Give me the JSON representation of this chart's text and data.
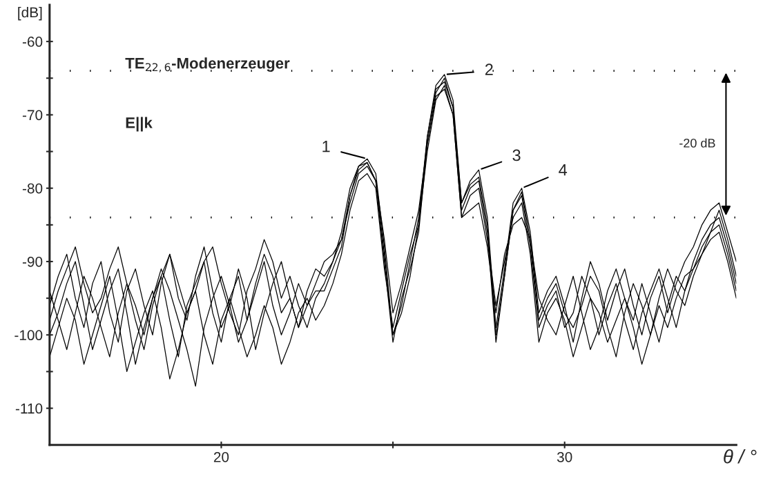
{
  "chart_data": {
    "type": "line",
    "title": "TE$_{22,6}$-Modenerzeuger",
    "subtitle": "E||k",
    "xlabel": "θ / °",
    "ylabel": "[dB]",
    "x": [
      15.0,
      15.25,
      15.5,
      15.75,
      16.0,
      16.25,
      16.5,
      16.75,
      17.0,
      17.25,
      17.5,
      17.75,
      18.0,
      18.25,
      18.5,
      18.75,
      19.0,
      19.25,
      19.5,
      19.75,
      20.0,
      20.25,
      20.5,
      20.75,
      21.0,
      21.25,
      21.5,
      21.75,
      22.0,
      22.25,
      22.5,
      22.75,
      23.0,
      23.25,
      23.5,
      23.75,
      24.0,
      24.25,
      24.5,
      24.75,
      25.0,
      25.25,
      25.5,
      25.75,
      26.0,
      26.25,
      26.5,
      26.75,
      27.0,
      27.25,
      27.5,
      27.75,
      28.0,
      28.25,
      28.5,
      28.75,
      29.0,
      29.25,
      29.5,
      29.75,
      30.0,
      30.25,
      30.5,
      30.75,
      31.0,
      31.25,
      31.5,
      31.75,
      32.0,
      32.25,
      32.5,
      32.75,
      33.0,
      33.25,
      33.5,
      33.75,
      34.0,
      34.25,
      34.5,
      34.75,
      35.0
    ],
    "series": [
      {
        "color": "#000000",
        "values": [
          -96,
          -92,
          -89,
          -95,
          -99,
          -93,
          -90,
          -97,
          -101,
          -94,
          -91,
          -96,
          -100,
          -93,
          -89,
          -95,
          -98,
          -92,
          -88,
          -94,
          -99,
          -96,
          -91,
          -95,
          -102,
          -97,
          -93,
          -90,
          -95,
          -99,
          -94,
          -91,
          -92,
          -90,
          -86,
          -80,
          -77,
          -76,
          -78,
          -88,
          -100,
          -96,
          -90,
          -84,
          -73,
          -66,
          -64.5,
          -68,
          -82,
          -79,
          -77.5,
          -84,
          -99,
          -91,
          -82,
          -80,
          -86,
          -97,
          -94,
          -92,
          -96,
          -101,
          -95,
          -90,
          -93,
          -98,
          -94,
          -91,
          -96,
          -100,
          -95,
          -92,
          -97,
          -93,
          -90,
          -88,
          -85,
          -83,
          -82,
          -86,
          -90
        ]
      },
      {
        "color": "#000000",
        "values": [
          -100,
          -97,
          -93,
          -90,
          -96,
          -102,
          -98,
          -94,
          -91,
          -97,
          -104,
          -99,
          -95,
          -92,
          -98,
          -103,
          -96,
          -93,
          -90,
          -97,
          -101,
          -95,
          -92,
          -98,
          -94,
          -90,
          -96,
          -100,
          -97,
          -93,
          -96,
          -94,
          -94,
          -91,
          -88,
          -81,
          -77.5,
          -76.5,
          -79,
          -90,
          -101,
          -95,
          -91,
          -86,
          -74,
          -67,
          -65,
          -69,
          -83,
          -80,
          -79,
          -86,
          -101,
          -92,
          -83,
          -81,
          -88,
          -99,
          -96,
          -94,
          -99,
          -97,
          -92,
          -95,
          -100,
          -96,
          -93,
          -98,
          -102,
          -97,
          -94,
          -91,
          -95,
          -99,
          -94,
          -90,
          -87,
          -85,
          -84,
          -88,
          -93
        ]
      },
      {
        "color": "#000000",
        "values": [
          -103,
          -99,
          -95,
          -98,
          -104,
          -100,
          -96,
          -92,
          -98,
          -105,
          -101,
          -97,
          -94,
          -99,
          -106,
          -102,
          -97,
          -94,
          -100,
          -104,
          -98,
          -95,
          -99,
          -103,
          -100,
          -96,
          -99,
          -104,
          -101,
          -97,
          -95,
          -98,
          -96,
          -93,
          -89,
          -83,
          -79,
          -78,
          -80,
          -91,
          -99,
          -94,
          -89,
          -85,
          -75,
          -68,
          -66,
          -70,
          -84,
          -81,
          -80,
          -87,
          -96,
          -90,
          -84,
          -82,
          -89,
          -101,
          -97,
          -95,
          -98,
          -103,
          -99,
          -95,
          -97,
          -101,
          -98,
          -95,
          -99,
          -104,
          -100,
          -96,
          -99,
          -95,
          -92,
          -91,
          -89,
          -87,
          -86,
          -90,
          -95
        ]
      },
      {
        "color": "#000000",
        "values": [
          -94,
          -98,
          -102,
          -97,
          -92,
          -95,
          -99,
          -103,
          -97,
          -93,
          -96,
          -100,
          -95,
          -91,
          -94,
          -98,
          -102,
          -107,
          -99,
          -95,
          -92,
          -96,
          -101,
          -98,
          -93,
          -89,
          -92,
          -97,
          -95,
          -99,
          -96,
          -93,
          -90,
          -89,
          -87,
          -82,
          -78,
          -77,
          -79,
          -87,
          -97,
          -93,
          -88,
          -83,
          -74,
          -67.5,
          -66.5,
          -70,
          -84,
          -83,
          -82,
          -88,
          -97,
          -89,
          -85,
          -84,
          -87,
          -95,
          -98,
          -100,
          -96,
          -92,
          -97,
          -102,
          -99,
          -94,
          -91,
          -95,
          -98,
          -93,
          -97,
          -101,
          -96,
          -92,
          -94,
          -91,
          -88,
          -86,
          -85,
          -89,
          -94
        ]
      },
      {
        "color": "#000000",
        "values": [
          -98,
          -94,
          -91,
          -88,
          -93,
          -97,
          -95,
          -91,
          -88,
          -93,
          -98,
          -102,
          -96,
          -92,
          -89,
          -93,
          -97,
          -94,
          -90,
          -88,
          -93,
          -97,
          -100,
          -94,
          -91,
          -87,
          -90,
          -95,
          -92,
          -96,
          -99,
          -95,
          -93,
          -90,
          -87,
          -81,
          -77,
          -76.5,
          -79,
          -89,
          -100,
          -97,
          -92,
          -85,
          -73,
          -66.5,
          -65.5,
          -69,
          -82,
          -79.5,
          -78.5,
          -85,
          -100,
          -92,
          -83,
          -80.5,
          -87,
          -98,
          -95,
          -93,
          -97,
          -99,
          -96,
          -92,
          -94,
          -99,
          -103,
          -97,
          -93,
          -96,
          -100,
          -95,
          -91,
          -94,
          -96,
          -92,
          -89,
          -86,
          -83,
          -87,
          -92
        ]
      }
    ],
    "xlim": [
      15,
      35
    ],
    "xticks": [
      20,
      {
        "value": 25,
        "label": null
      },
      30
    ],
    "ylim": [
      -115,
      -55
    ],
    "yticks": [
      -60,
      {
        "value": -65,
        "label": null
      },
      -70,
      {
        "value": -75,
        "label": null
      },
      -80,
      {
        "value": -85,
        "label": null
      },
      -90,
      {
        "value": -95,
        "label": null
      },
      -100,
      {
        "value": -105,
        "label": null
      },
      -110
    ],
    "ref_lines": [
      {
        "axis": "y",
        "value": -64,
        "line_style": "dotted",
        "color": "#000000"
      },
      {
        "axis": "y",
        "value": -84,
        "line_style": "dotted",
        "color": "#000000"
      }
    ],
    "annotations": [
      {
        "text": "1",
        "x": 24.25,
        "y": -76
      },
      {
        "text": "2",
        "x": 26.5,
        "y": -64.5
      },
      {
        "text": "3",
        "x": 27.5,
        "y": -77.5
      },
      {
        "text": "4",
        "x": 28.75,
        "y": -80
      },
      "-20 dB"
    ],
    "grid": false,
    "legend": false,
    "marker": "none",
    "line_style": "solid"
  }
}
